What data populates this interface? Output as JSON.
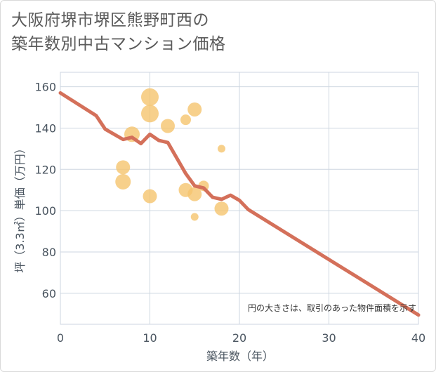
{
  "title": {
    "line1": "大阪府堺市堺区熊野町西の",
    "line2": "築年数別中古マンション価格"
  },
  "chart_data": {
    "type": "scatter",
    "xlabel": "築年数（年）",
    "ylabel": "坪（3.3㎡）単価（万円）",
    "xlim": [
      0,
      40
    ],
    "ylim": [
      45,
      167
    ],
    "xticks": [
      0,
      10,
      20,
      30,
      40
    ],
    "yticks": [
      60,
      80,
      100,
      120,
      140,
      160
    ],
    "grid": true,
    "note": "円の大きさは、取引のあった物件面積を示す",
    "colors": {
      "bubble": "#f5c46e",
      "trend": "#d4705a",
      "grid": "#cdd6e0"
    },
    "bubbles": [
      {
        "x": 7,
        "y": 121,
        "size": 2
      },
      {
        "x": 7,
        "y": 114,
        "size": 3
      },
      {
        "x": 8,
        "y": 137,
        "size": 3
      },
      {
        "x": 10,
        "y": 155,
        "size": 4
      },
      {
        "x": 10,
        "y": 147,
        "size": 4
      },
      {
        "x": 10,
        "y": 107,
        "size": 2
      },
      {
        "x": 12,
        "y": 141,
        "size": 2
      },
      {
        "x": 14,
        "y": 144,
        "size": 1
      },
      {
        "x": 14,
        "y": 110,
        "size": 2
      },
      {
        "x": 15,
        "y": 149,
        "size": 2
      },
      {
        "x": 15,
        "y": 108,
        "size": 2
      },
      {
        "x": 15,
        "y": 97,
        "size": 0
      },
      {
        "x": 16,
        "y": 112,
        "size": 1
      },
      {
        "x": 18,
        "y": 130,
        "size": 0
      },
      {
        "x": 18,
        "y": 101,
        "size": 2
      }
    ],
    "trend": {
      "x": [
        0,
        4,
        5,
        7,
        8,
        9,
        10,
        11,
        12,
        14,
        15,
        16,
        17,
        18,
        19,
        20,
        21,
        40
      ],
      "y": [
        157,
        146,
        139.5,
        134.5,
        135.5,
        132.5,
        137,
        134,
        133,
        118,
        112,
        111,
        106.5,
        105.5,
        107.5,
        105,
        100.5,
        49.5
      ]
    }
  }
}
